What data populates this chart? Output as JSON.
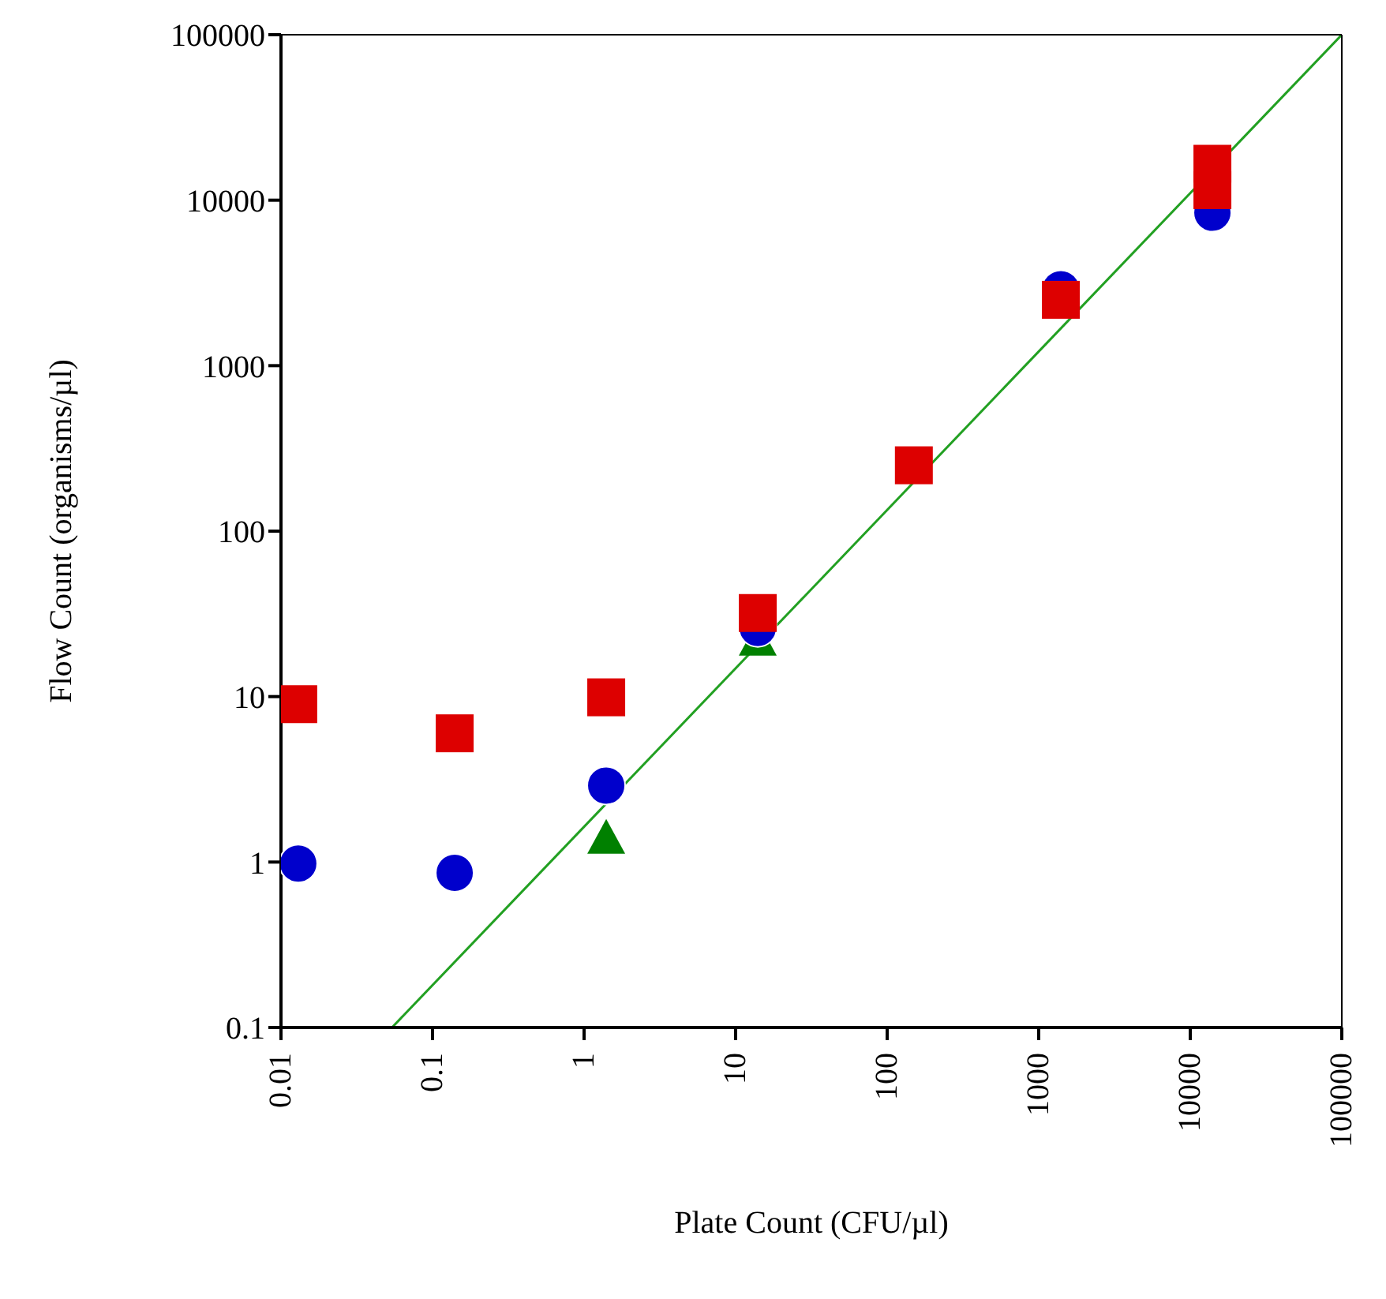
{
  "chart_data": {
    "type": "scatter",
    "xlabel": "Plate Count (CFU/µl)",
    "ylabel": "Flow Count (organisms/µl)",
    "log": "xy",
    "xlim": [
      0.01,
      100000
    ],
    "xticks": [
      0.01,
      0.1,
      1,
      10,
      100,
      1000,
      10000,
      100000
    ],
    "ylim": [
      0.1,
      100000
    ],
    "yticks": [
      0.1,
      1,
      10,
      100,
      1000,
      10000,
      100000
    ],
    "series": [
      {
        "type": "line",
        "color": "#22a022",
        "marker": "none",
        "x": [
          0.054,
          100000
        ],
        "values": [
          0.1,
          100000
        ]
      },
      {
        "color": "#008000",
        "marker": "triangle",
        "x": [
          1.4,
          14
        ],
        "values": [
          1.4,
          22
        ]
      },
      {
        "color": "#0000cc",
        "marker": "circle",
        "x": [
          0.013,
          0.14,
          1.4,
          14,
          1400,
          14000
        ],
        "values": [
          0.98,
          0.86,
          2.9,
          26,
          2900,
          8400
        ]
      },
      {
        "color": "#dd0000",
        "marker": "square",
        "x": [
          0.013,
          0.14,
          1.4,
          14,
          150,
          1400,
          14000,
          14000
        ],
        "values": [
          9,
          6,
          9.9,
          32,
          250,
          2500,
          11500,
          16600
        ]
      }
    ]
  }
}
